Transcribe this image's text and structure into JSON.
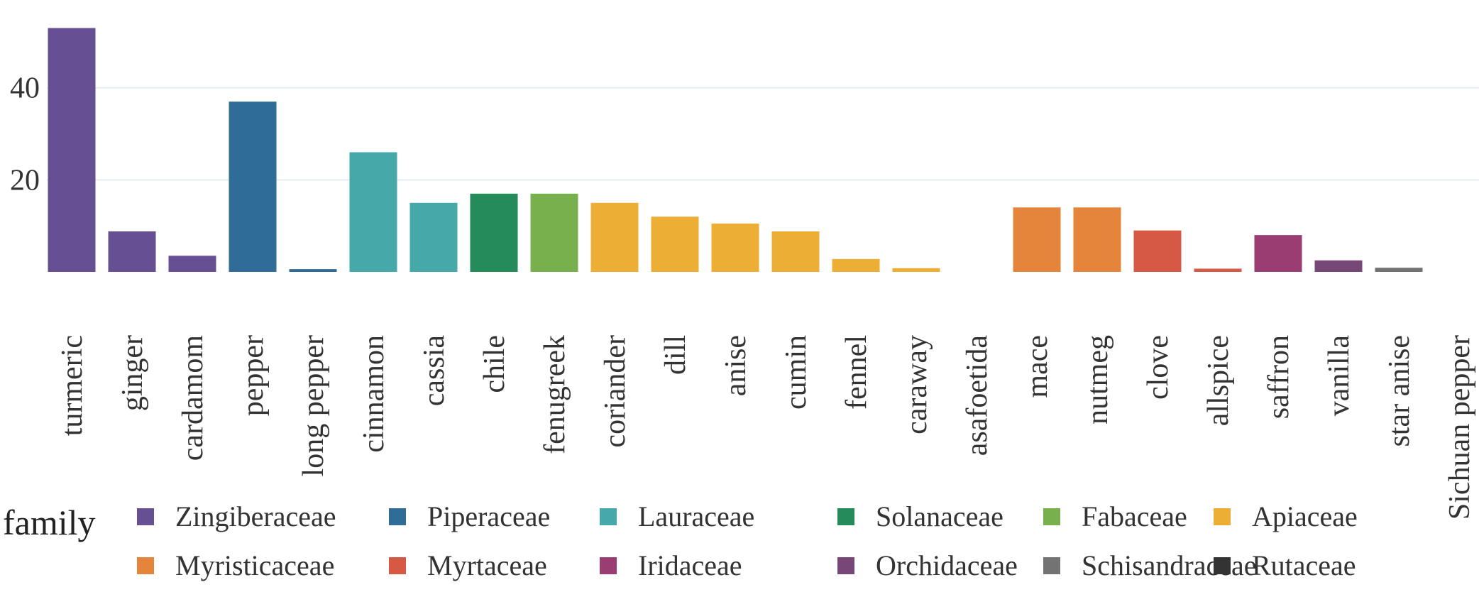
{
  "chart_data": {
    "type": "bar",
    "categories": [
      "turmeric",
      "ginger",
      "cardamom",
      "pepper",
      "long pepper",
      "cinnamon",
      "cassia",
      "chile",
      "fenugreek",
      "coriander",
      "dill",
      "anise",
      "cumin",
      "fennel",
      "caraway",
      "asafoetida",
      "mace",
      "nutmeg",
      "clove",
      "allspice",
      "saffron",
      "vanilla",
      "star anise",
      "Sichuan pepper"
    ],
    "values": [
      53,
      8.8,
      3.5,
      37,
      0.6,
      26,
      15,
      17,
      17,
      15,
      12,
      10.5,
      8.8,
      2.8,
      0.8,
      0,
      14,
      14,
      9,
      0.7,
      8,
      2.5,
      0.9,
      0
    ],
    "families": [
      "Zingiberaceae",
      "Zingiberaceae",
      "Zingiberaceae",
      "Piperaceae",
      "Piperaceae",
      "Lauraceae",
      "Lauraceae",
      "Solanaceae",
      "Fabaceae",
      "Apiaceae",
      "Apiaceae",
      "Apiaceae",
      "Apiaceae",
      "Apiaceae",
      "Apiaceae",
      "Apiaceae",
      "Myristicaceae",
      "Myristicaceae",
      "Myrtaceae",
      "Myrtaceae",
      "Iridaceae",
      "Orchidaceae",
      "Schisandraceae",
      "Rutaceae"
    ],
    "yticks": [
      20,
      40
    ],
    "ylim": [
      0,
      54
    ],
    "grid": true,
    "legend": {
      "title": "family",
      "placement": "bottom",
      "entries": [
        {
          "name": "Zingiberaceae",
          "color": "#674f93"
        },
        {
          "name": "Piperaceae",
          "color": "#2f6c98"
        },
        {
          "name": "Lauraceae",
          "color": "#45a9aa"
        },
        {
          "name": "Solanaceae",
          "color": "#268b5b"
        },
        {
          "name": "Fabaceae",
          "color": "#79b04e"
        },
        {
          "name": "Apiaceae",
          "color": "#edae35"
        },
        {
          "name": "Myristicaceae",
          "color": "#e5843b"
        },
        {
          "name": "Myrtaceae",
          "color": "#d55945"
        },
        {
          "name": "Iridaceae",
          "color": "#9a3d72"
        },
        {
          "name": "Orchidaceae",
          "color": "#774877"
        },
        {
          "name": "Schisandraceae",
          "color": "#737373"
        },
        {
          "name": "Rutaceae",
          "color": "#333333"
        }
      ]
    }
  }
}
